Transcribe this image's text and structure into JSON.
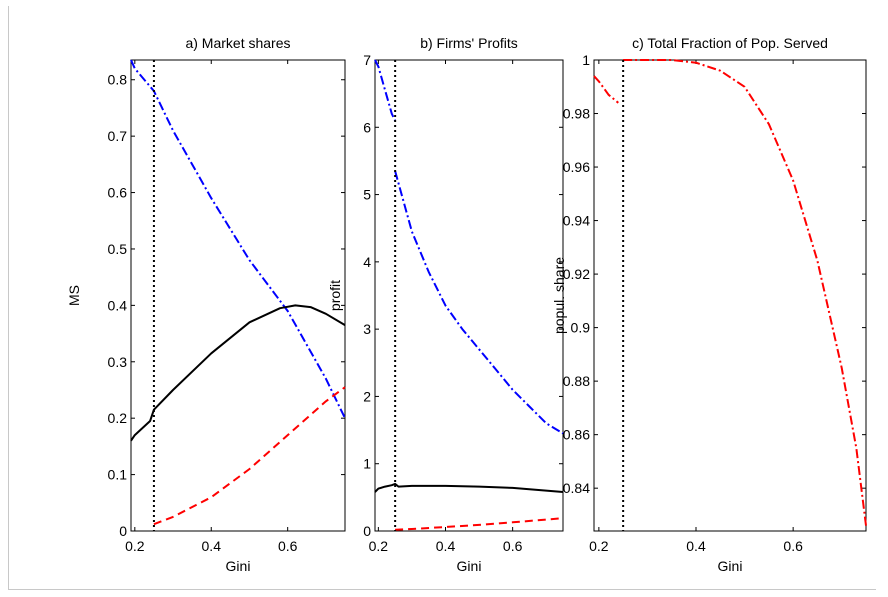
{
  "chart_data": [
    {
      "type": "line",
      "title": "a) Market shares",
      "xlabel": "Gini",
      "ylabel": "MS",
      "xlim": [
        0.19,
        0.75
      ],
      "ylim": [
        0,
        0.835
      ],
      "xticks": [
        0.2,
        0.4,
        0.6
      ],
      "xtick_labels": [
        "0.2",
        "0.4",
        "0.6"
      ],
      "yticks": [
        0,
        0.1,
        0.2,
        0.3,
        0.4,
        0.5,
        0.6,
        0.7,
        0.8
      ],
      "ytick_labels": [
        "0",
        "0.1",
        "0.2",
        "0.3",
        "0.4",
        "0.5",
        "0.6",
        "0.7",
        "0.8"
      ],
      "vline": 0.25,
      "vline_style": "dotted",
      "series": [
        {
          "color": "#0000ff",
          "dash": "dashdot",
          "x": [
            0.19,
            0.2,
            0.25,
            0.3,
            0.4,
            0.5,
            0.6,
            0.7,
            0.75
          ],
          "y": [
            0.835,
            0.82,
            0.78,
            0.71,
            0.59,
            0.48,
            0.39,
            0.27,
            0.2
          ]
        },
        {
          "color": "#000000",
          "dash": "solid",
          "x": [
            0.19,
            0.2,
            0.24,
            0.25,
            0.3,
            0.4,
            0.5,
            0.58,
            0.62,
            0.66,
            0.7,
            0.75
          ],
          "y": [
            0.16,
            0.17,
            0.195,
            0.215,
            0.25,
            0.315,
            0.37,
            0.395,
            0.4,
            0.397,
            0.385,
            0.365
          ]
        },
        {
          "color": "#ff0000",
          "dash": "dashed",
          "x": [
            0.25,
            0.3,
            0.4,
            0.5,
            0.6,
            0.7,
            0.75
          ],
          "y": [
            0.012,
            0.025,
            0.06,
            0.11,
            0.17,
            0.23,
            0.255
          ]
        }
      ]
    },
    {
      "type": "line",
      "title": "b) Firms' Profits",
      "xlabel": "Gini",
      "ylabel": "profit",
      "xlim": [
        0.19,
        0.75
      ],
      "ylim": [
        0,
        7
      ],
      "xticks": [
        0.2,
        0.4,
        0.6
      ],
      "xtick_labels": [
        "0.2",
        "0.4",
        "0.6"
      ],
      "yticks": [
        0,
        1,
        2,
        3,
        4,
        5,
        6,
        7
      ],
      "ytick_labels": [
        "0",
        "1",
        "2",
        "3",
        "4",
        "5",
        "6",
        "7"
      ],
      "vline": 0.25,
      "vline_style": "dotted",
      "series": [
        {
          "color": "#0000ff",
          "dash": "dashdot",
          "x": [
            0.19,
            0.2,
            0.22,
            0.24,
            0.25
          ],
          "y": [
            7.0,
            6.9,
            6.55,
            6.2,
            6.1
          ]
        },
        {
          "color": "#0000ff",
          "dash": "dashdot",
          "x": [
            0.25,
            0.3,
            0.35,
            0.4,
            0.45,
            0.5,
            0.55,
            0.6,
            0.65,
            0.7,
            0.75
          ],
          "y": [
            5.35,
            4.45,
            3.85,
            3.35,
            3.0,
            2.7,
            2.4,
            2.1,
            1.85,
            1.6,
            1.45
          ]
        },
        {
          "color": "#000000",
          "dash": "solid",
          "x": [
            0.19,
            0.2,
            0.22,
            0.24,
            0.25,
            0.26,
            0.3,
            0.4,
            0.5,
            0.6,
            0.7,
            0.75
          ],
          "y": [
            0.58,
            0.63,
            0.66,
            0.68,
            0.7,
            0.66,
            0.67,
            0.67,
            0.66,
            0.64,
            0.6,
            0.58
          ]
        },
        {
          "color": "#ff0000",
          "dash": "dashed",
          "x": [
            0.25,
            0.3,
            0.4,
            0.5,
            0.6,
            0.7,
            0.75
          ],
          "y": [
            0.02,
            0.03,
            0.06,
            0.09,
            0.13,
            0.17,
            0.19
          ]
        }
      ]
    },
    {
      "type": "line",
      "title": "c) Total Fraction of Pop. Served",
      "xlabel": "Gini",
      "ylabel": "popul. share",
      "xlim": [
        0.19,
        0.75
      ],
      "ylim": [
        0.824,
        1.0
      ],
      "xticks": [
        0.2,
        0.4,
        0.6
      ],
      "xtick_labels": [
        "0.2",
        "0.4",
        "0.6"
      ],
      "yticks": [
        0.84,
        0.86,
        0.88,
        0.9,
        0.92,
        0.94,
        0.96,
        0.98,
        1.0
      ],
      "ytick_labels": [
        "0.84",
        "0.86",
        "0.88",
        "0.9",
        "0.92",
        "0.94",
        "0.96",
        "0.98",
        "1"
      ],
      "vline": 0.25,
      "vline_style": "dotted",
      "series": [
        {
          "color": "#ff0000",
          "dash": "dashdot",
          "x": [
            0.19,
            0.2,
            0.22,
            0.24
          ],
          "y": [
            0.994,
            0.992,
            0.987,
            0.984
          ]
        },
        {
          "color": "#ff0000",
          "dash": "dashdot",
          "x": [
            0.25,
            0.3,
            0.35,
            0.4,
            0.45,
            0.5,
            0.55,
            0.6,
            0.65,
            0.7,
            0.73,
            0.75
          ],
          "y": [
            1.0,
            1.0,
            1.0,
            0.999,
            0.996,
            0.99,
            0.976,
            0.955,
            0.925,
            0.885,
            0.855,
            0.826
          ]
        }
      ]
    }
  ]
}
